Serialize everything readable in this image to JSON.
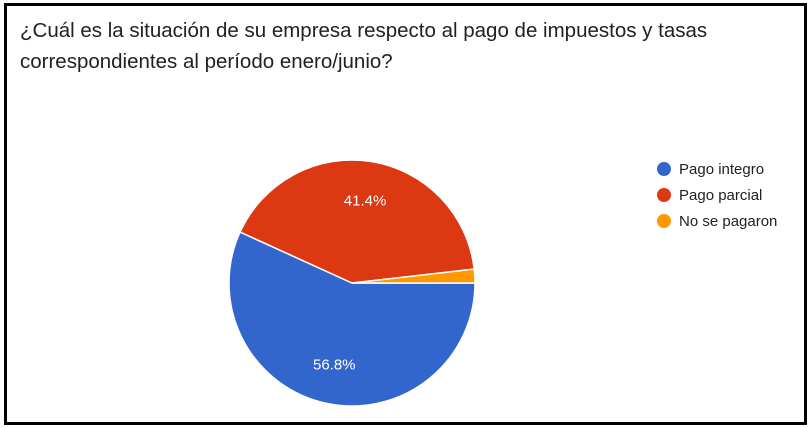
{
  "question": {
    "text": "¿Cuál es la situación de su empresa respecto al pago de impuestos y tasas correspondientes al período enero/junio?"
  },
  "chart_data": {
    "type": "pie",
    "title": "",
    "slices": [
      {
        "label": "Pago integro",
        "value": 56.8,
        "color": "#3366cc",
        "label_text": "56.8%"
      },
      {
        "label": "Pago parcial",
        "value": 41.4,
        "color": "#dc3912",
        "label_text": "41.4%"
      },
      {
        "label": "No se pagaron",
        "value": 1.8,
        "color": "#ff9900",
        "label_text": ""
      }
    ],
    "start_direction": "right",
    "direction": "clockwise",
    "legend_position": "right"
  }
}
